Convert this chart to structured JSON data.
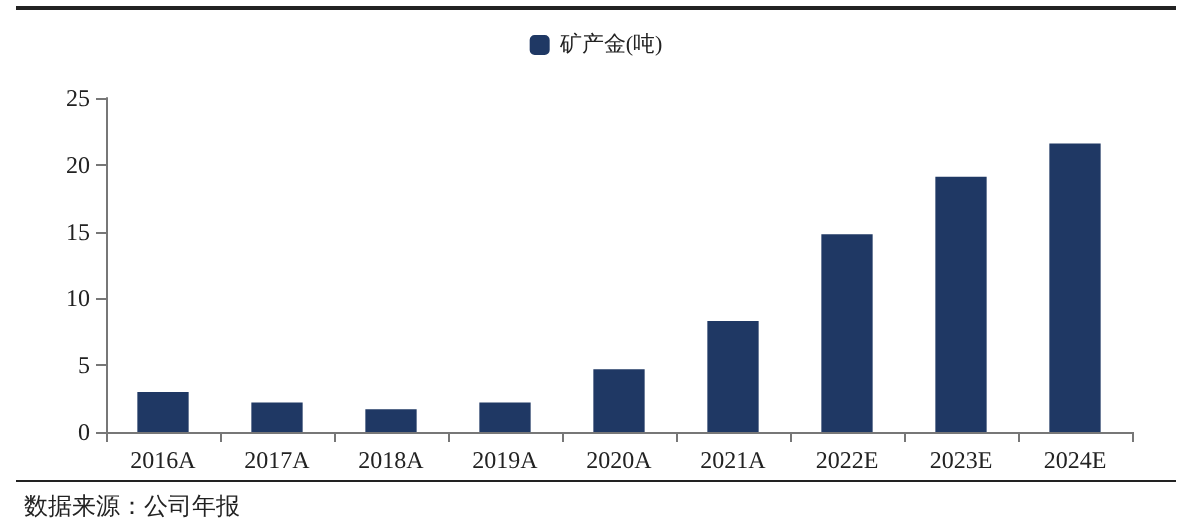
{
  "chart_data": {
    "type": "bar",
    "categories": [
      "2016A",
      "2017A",
      "2018A",
      "2019A",
      "2020A",
      "2021A",
      "2022E",
      "2023E",
      "2024E"
    ],
    "series": [
      {
        "name": "矿产金(吨)",
        "color": "#1f3864",
        "values": [
          3.0,
          2.2,
          1.7,
          2.2,
          4.7,
          8.3,
          14.8,
          19.1,
          21.6
        ]
      }
    ],
    "ylim": [
      0,
      25
    ],
    "yticks": [
      0,
      5,
      10,
      15,
      20,
      25
    ],
    "grid": false,
    "legend": "top",
    "annotations": [
      "数据来源：公司年报"
    ]
  }
}
